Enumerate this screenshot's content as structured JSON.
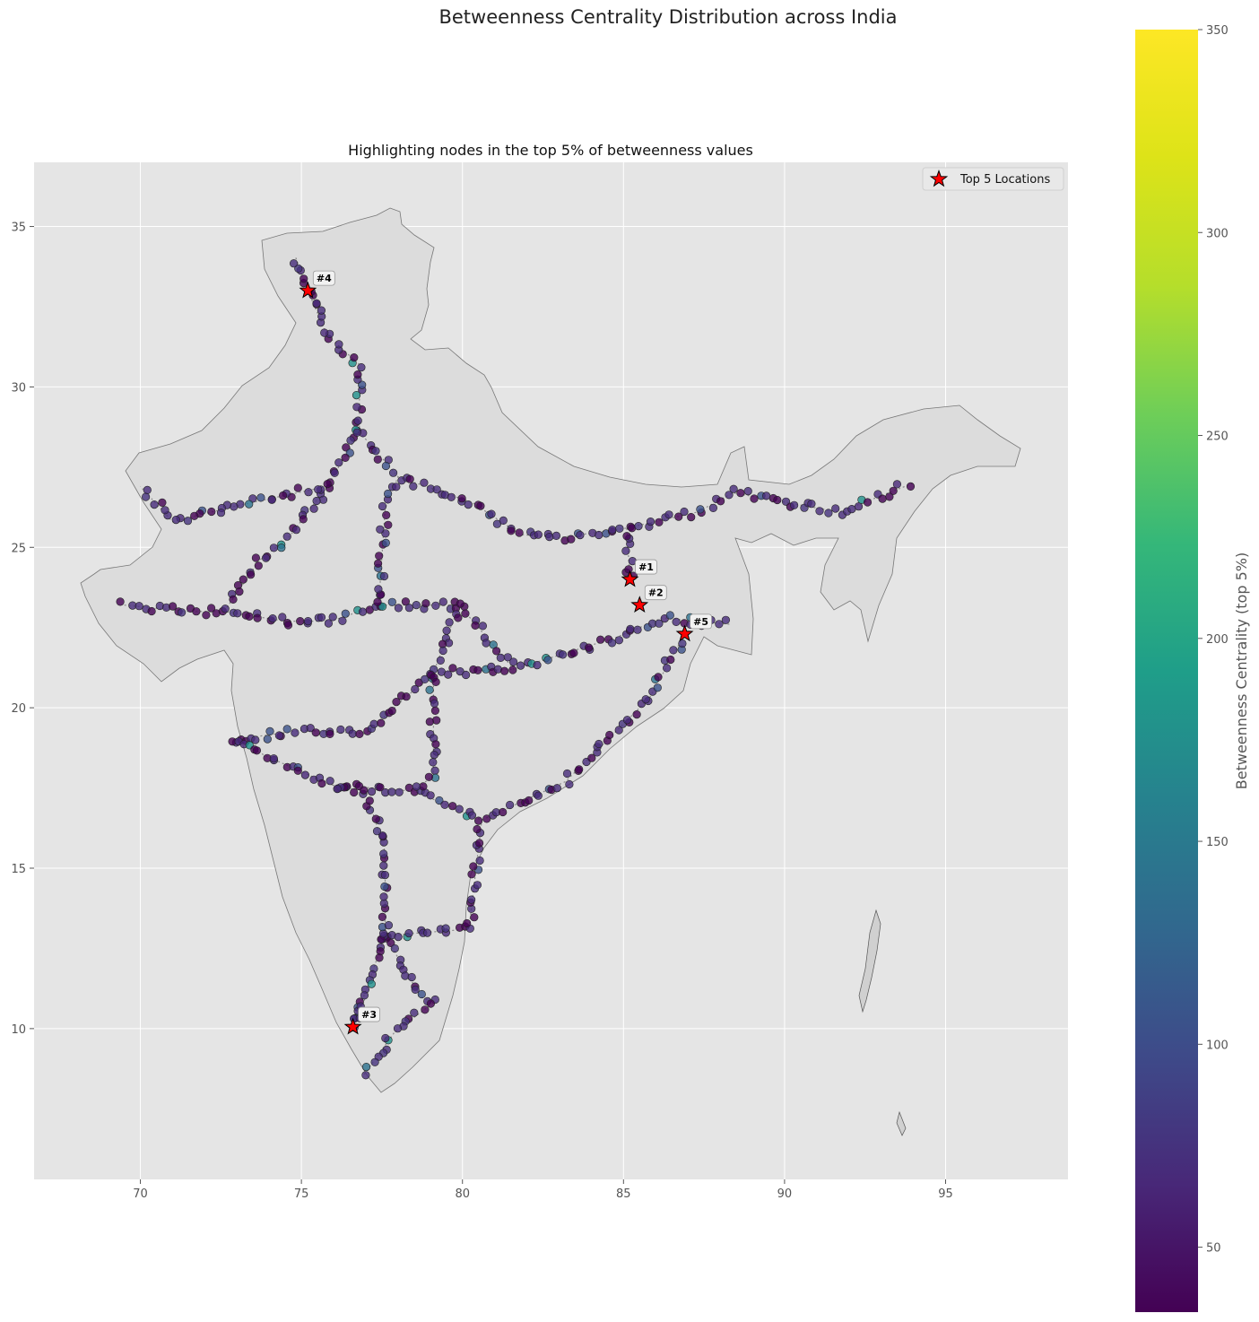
{
  "figure": {
    "suptitle": "Betweenness Centrality Distribution across India"
  },
  "chart_data": {
    "type": "scatter",
    "title": "Highlighting nodes in the top 5% of betweenness values",
    "xlabel": "",
    "ylabel": "",
    "xlim": [
      66.7,
      98.8
    ],
    "ylim": [
      5.3,
      37.0
    ],
    "xticks": [
      "70",
      "75",
      "80",
      "85",
      "90",
      "95"
    ],
    "yticks": [
      "10",
      "15",
      "20",
      "25",
      "30",
      "35"
    ],
    "grid": true,
    "legend": {
      "placement": "top-right",
      "entries": [
        "Top 5 Locations"
      ]
    },
    "top_locations": [
      {
        "label": "#1",
        "x": 85.2,
        "y": 24.0
      },
      {
        "label": "#2",
        "x": 85.5,
        "y": 23.2
      },
      {
        "label": "#3",
        "x": 76.6,
        "y": 10.05
      },
      {
        "label": "#4",
        "x": 75.2,
        "y": 33.0
      },
      {
        "label": "#5",
        "x": 86.9,
        "y": 22.3
      }
    ],
    "colorbar": {
      "label": "Betweenness Centrality (top 5%)",
      "range": [
        34,
        350
      ],
      "ticks": [
        "50",
        "100",
        "150",
        "200",
        "250",
        "300",
        "350"
      ],
      "colormap": "viridis"
    },
    "background_nodes_route": [
      [
        [
          69.5,
          23.2
        ],
        [
          71.5,
          23.0
        ],
        [
          72.6,
          23.0
        ],
        [
          74.5,
          22.7
        ],
        [
          75.9,
          22.7
        ],
        [
          77.4,
          23.2
        ],
        [
          79.9,
          23.2
        ],
        [
          81.6,
          21.2
        ],
        [
          84.8,
          22.2
        ],
        [
          86.2,
          22.8
        ],
        [
          88.3,
          22.6
        ]
      ],
      [
        [
          72.9,
          19.0
        ],
        [
          75.0,
          19.3
        ],
        [
          77.0,
          19.2
        ],
        [
          79.1,
          21.1
        ],
        [
          81.6,
          21.2
        ]
      ],
      [
        [
          72.9,
          19.0
        ],
        [
          73.9,
          18.5
        ],
        [
          75.9,
          17.6
        ],
        [
          78.5,
          17.4
        ],
        [
          80.6,
          16.5
        ],
        [
          83.2,
          17.7
        ],
        [
          85.8,
          20.3
        ],
        [
          86.9,
          22.3
        ]
      ],
      [
        [
          76.8,
          28.6
        ],
        [
          78.0,
          27.2
        ],
        [
          80.3,
          26.4
        ],
        [
          81.8,
          25.4
        ],
        [
          83.0,
          25.3
        ],
        [
          85.1,
          25.6
        ],
        [
          87.3,
          26.1
        ],
        [
          88.4,
          26.7
        ],
        [
          91.7,
          26.1
        ],
        [
          94.0,
          27.0
        ]
      ],
      [
        [
          76.8,
          28.6
        ],
        [
          75.8,
          26.9
        ],
        [
          74.6,
          25.3
        ],
        [
          73.7,
          24.6
        ],
        [
          72.6,
          23.0
        ]
      ],
      [
        [
          76.8,
          28.6
        ],
        [
          76.8,
          30.7
        ],
        [
          75.8,
          31.6
        ],
        [
          75.2,
          33.0
        ],
        [
          74.8,
          34.1
        ]
      ],
      [
        [
          77.6,
          12.9
        ],
        [
          78.7,
          11.0
        ],
        [
          79.1,
          10.8
        ],
        [
          77.9,
          9.9
        ],
        [
          76.9,
          8.5
        ]
      ],
      [
        [
          77.6,
          12.9
        ],
        [
          80.2,
          13.1
        ],
        [
          80.6,
          16.5
        ]
      ],
      [
        [
          77.6,
          12.9
        ],
        [
          76.6,
          10.05
        ],
        [
          77.0,
          11.0
        ]
      ],
      [
        [
          77.6,
          12.9
        ],
        [
          77.6,
          15.5
        ],
        [
          77.0,
          17.4
        ],
        [
          75.9,
          17.6
        ]
      ],
      [
        [
          77.4,
          23.2
        ],
        [
          77.6,
          26.2
        ],
        [
          78.0,
          27.2
        ]
      ],
      [
        [
          79.9,
          23.2
        ],
        [
          79.1,
          21.1
        ],
        [
          79.1,
          17.9
        ],
        [
          78.5,
          17.4
        ]
      ],
      [
        [
          75.8,
          26.9
        ],
        [
          73.0,
          26.3
        ],
        [
          71.0,
          25.8
        ],
        [
          70.0,
          26.9
        ]
      ],
      [
        [
          85.2,
          24.0
        ],
        [
          85.1,
          25.6
        ]
      ]
    ]
  }
}
